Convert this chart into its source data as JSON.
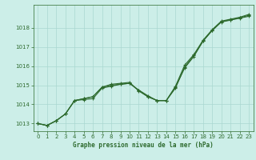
{
  "hours": [
    0,
    1,
    2,
    3,
    4,
    5,
    6,
    7,
    8,
    9,
    10,
    11,
    12,
    13,
    14,
    15,
    16,
    17,
    18,
    19,
    20,
    21,
    22,
    23
  ],
  "pressure_line1": [
    1013.0,
    1012.9,
    1013.15,
    1013.5,
    1014.2,
    1014.25,
    1014.3,
    1014.85,
    1014.95,
    1015.05,
    1015.1,
    1014.75,
    1014.45,
    1014.2,
    1014.2,
    1014.9,
    1015.9,
    1016.5,
    1017.3,
    1017.85,
    1018.3,
    1018.4,
    1018.5,
    1018.6
  ],
  "pressure_line2": [
    1013.0,
    1012.9,
    1013.15,
    1013.5,
    1014.2,
    1014.3,
    1014.4,
    1014.9,
    1015.05,
    1015.1,
    1015.15,
    1014.7,
    1014.4,
    1014.2,
    1014.2,
    1014.95,
    1016.05,
    1016.6,
    1017.35,
    1017.9,
    1018.35,
    1018.45,
    1018.55,
    1018.7
  ],
  "pressure_line3": [
    1013.0,
    1012.9,
    1013.15,
    1013.5,
    1014.2,
    1014.3,
    1014.4,
    1014.9,
    1015.0,
    1015.05,
    1015.1,
    1014.72,
    1014.4,
    1014.2,
    1014.2,
    1014.85,
    1015.95,
    1016.55,
    1017.3,
    1017.88,
    1018.32,
    1018.42,
    1018.52,
    1018.65
  ],
  "ylim_min": 1012.6,
  "ylim_max": 1019.2,
  "yticks": [
    1013,
    1014,
    1015,
    1016,
    1017,
    1018
  ],
  "xticks": [
    0,
    1,
    2,
    3,
    4,
    5,
    6,
    7,
    8,
    9,
    10,
    11,
    12,
    13,
    14,
    15,
    16,
    17,
    18,
    19,
    20,
    21,
    22,
    23
  ],
  "line_color": "#2d6a2d",
  "bg_color": "#cceee8",
  "grid_color": "#aad8d0",
  "xlabel": "Graphe pression niveau de la mer (hPa)",
  "marker": "+",
  "marker_size": 3,
  "line_width": 0.8
}
